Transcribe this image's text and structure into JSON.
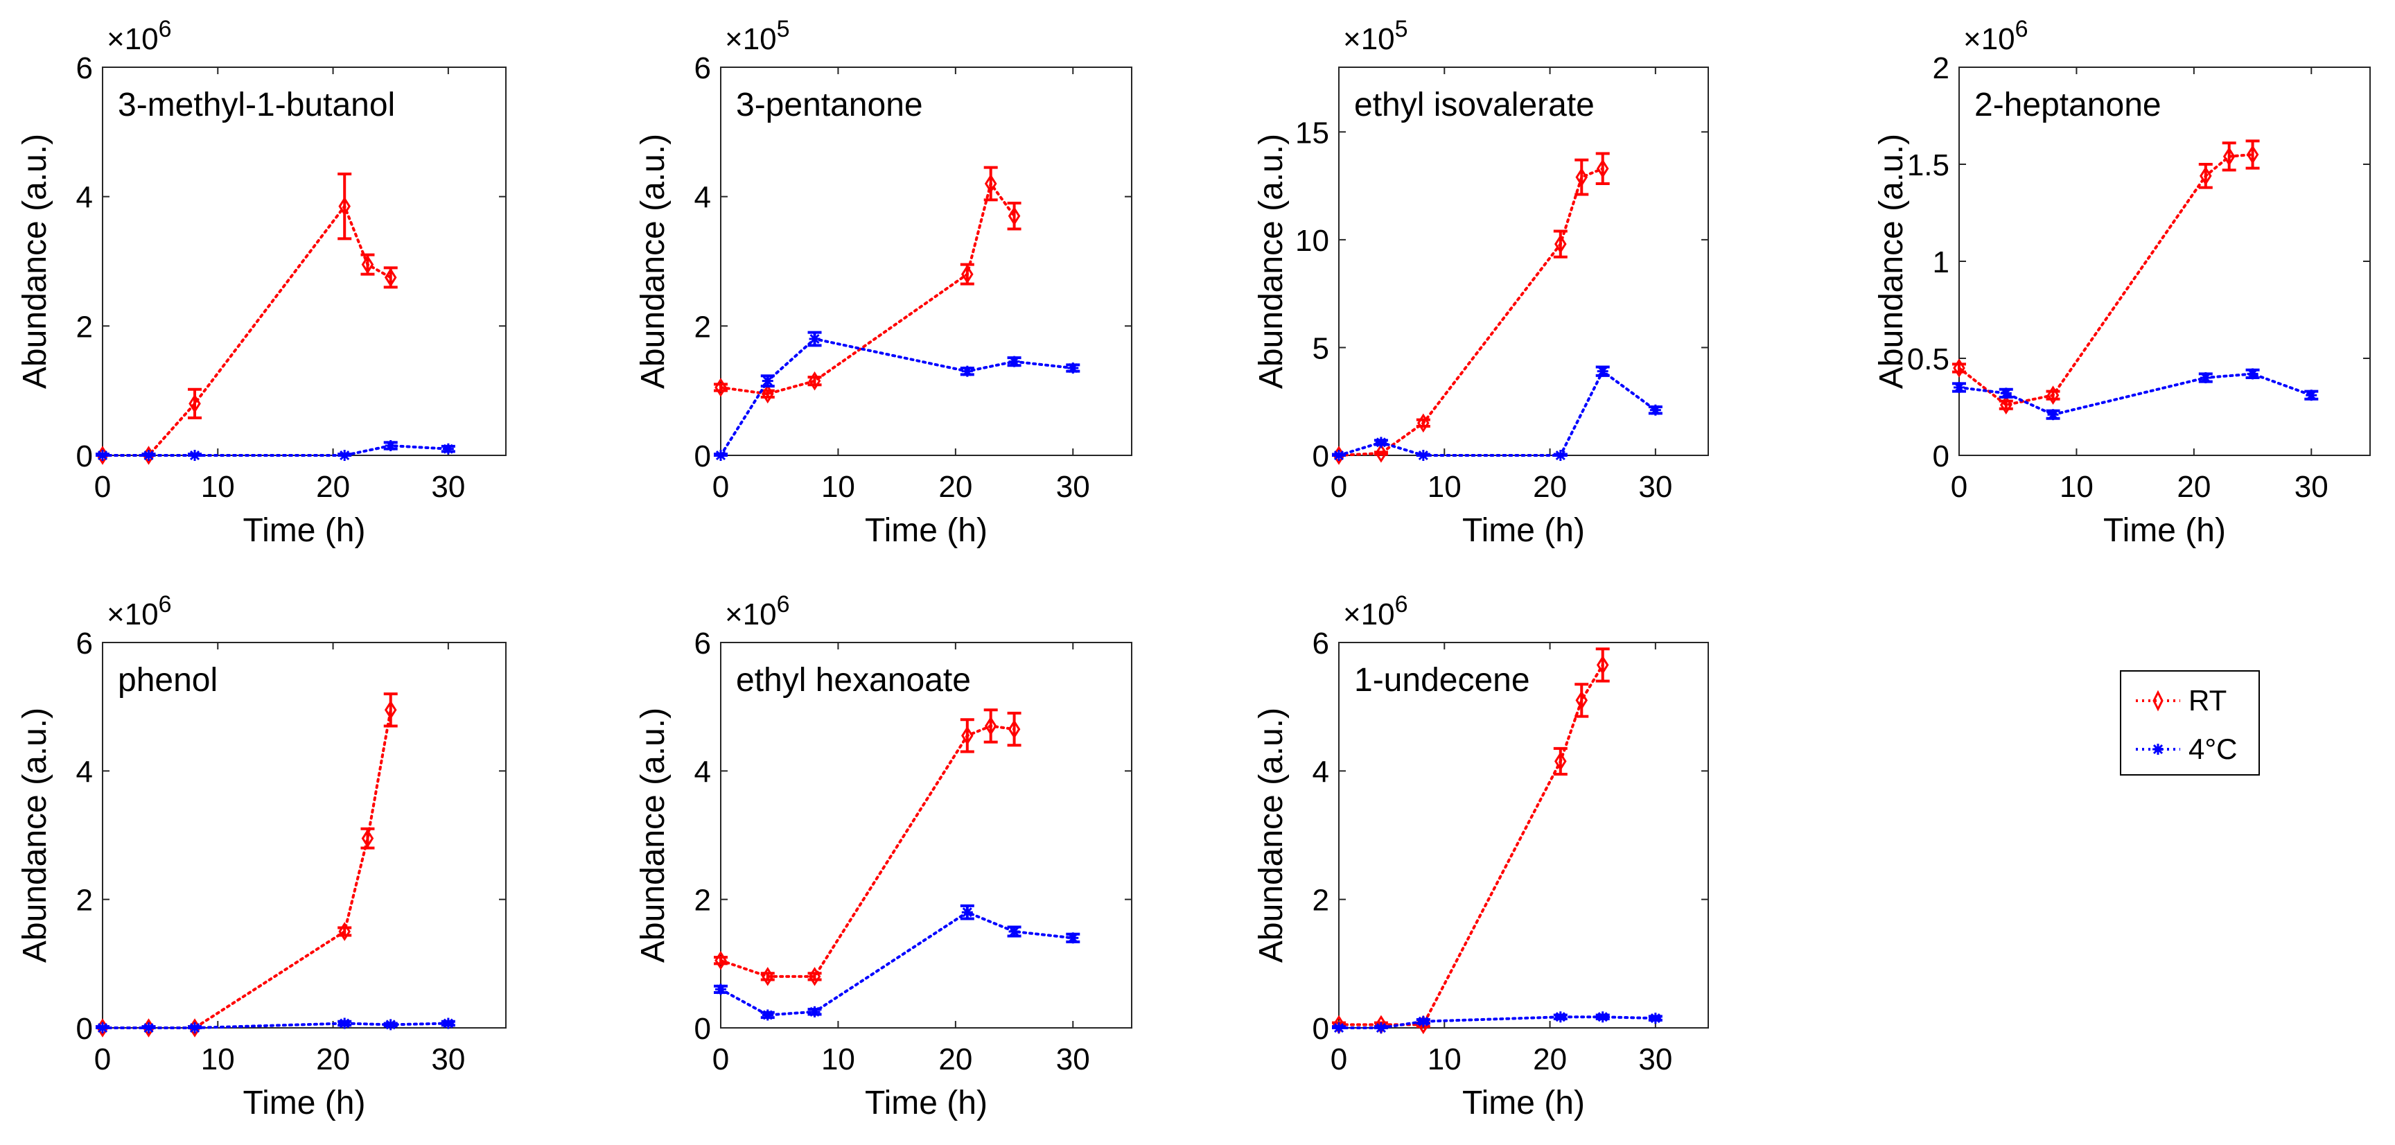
{
  "figure": {
    "xlabel": "Time (h)",
    "ylabel": "Abundance (a.u.)",
    "legend": {
      "entries": [
        {
          "name": "RT",
          "color": "#ff0000",
          "marker": "diamond"
        },
        {
          "name": "4°C",
          "color": "#0000ff",
          "marker": "asterisk"
        }
      ]
    }
  },
  "chart_data": [
    {
      "type": "line",
      "title": "3-methyl-1-butanol",
      "xlabel": "Time (h)",
      "ylabel": "Abundance (a.u.)",
      "xlim": [
        0,
        35
      ],
      "ylim": [
        0,
        6
      ],
      "xticks": [
        0,
        10,
        20,
        30
      ],
      "yticks": [
        0,
        2,
        4,
        6
      ],
      "multiplier_base": "×10",
      "multiplier_exp": "6",
      "series": [
        {
          "name": "RT",
          "x": [
            0,
            4,
            8,
            21,
            23,
            25
          ],
          "y": [
            0,
            0,
            0.8,
            3.85,
            2.95,
            2.75
          ],
          "err": [
            0.02,
            0.02,
            0.22,
            0.5,
            0.15,
            0.15
          ]
        },
        {
          "name": "4°C",
          "x": [
            0,
            4,
            8,
            21,
            25,
            30
          ],
          "y": [
            0,
            0,
            0,
            0,
            0.15,
            0.1
          ],
          "err": [
            0.02,
            0.02,
            0.02,
            0.02,
            0.05,
            0.04
          ]
        }
      ]
    },
    {
      "type": "line",
      "title": "3-pentanone",
      "xlabel": "Time (h)",
      "ylabel": "Abundance (a.u.)",
      "xlim": [
        0,
        35
      ],
      "ylim": [
        0,
        6
      ],
      "xticks": [
        0,
        10,
        20,
        30
      ],
      "yticks": [
        0,
        2,
        4,
        6
      ],
      "multiplier_base": "×10",
      "multiplier_exp": "5",
      "series": [
        {
          "name": "RT",
          "x": [
            0,
            4,
            8,
            21,
            23,
            25
          ],
          "y": [
            1.05,
            0.95,
            1.15,
            2.8,
            4.2,
            3.7
          ],
          "err": [
            0.05,
            0.05,
            0.06,
            0.15,
            0.25,
            0.2
          ]
        },
        {
          "name": "4°C",
          "x": [
            0,
            4,
            8,
            21,
            25,
            30
          ],
          "y": [
            0,
            1.15,
            1.8,
            1.3,
            1.45,
            1.35
          ],
          "err": [
            0.02,
            0.08,
            0.1,
            0.05,
            0.06,
            0.05
          ]
        }
      ]
    },
    {
      "type": "line",
      "title": "ethyl isovalerate",
      "xlabel": "Time (h)",
      "ylabel": "Abundance (a.u.)",
      "xlim": [
        0,
        35
      ],
      "ylim": [
        0,
        18
      ],
      "xticks": [
        0,
        10,
        20,
        30
      ],
      "yticks": [
        0,
        5,
        10,
        15
      ],
      "multiplier_base": "×10",
      "multiplier_exp": "5",
      "series": [
        {
          "name": "RT",
          "x": [
            0,
            4,
            8,
            21,
            23,
            25
          ],
          "y": [
            0,
            0.1,
            1.5,
            9.8,
            12.9,
            13.3
          ],
          "err": [
            0.05,
            0.05,
            0.15,
            0.6,
            0.8,
            0.7
          ]
        },
        {
          "name": "4°C",
          "x": [
            0,
            4,
            8,
            21,
            25,
            30
          ],
          "y": [
            0,
            0.6,
            0,
            0,
            3.9,
            2.1
          ],
          "err": [
            0.05,
            0.1,
            0.05,
            0.05,
            0.2,
            0.15
          ]
        }
      ]
    },
    {
      "type": "line",
      "title": "2-heptanone",
      "xlabel": "Time (h)",
      "ylabel": "Abundance (a.u.)",
      "xlim": [
        0,
        35
      ],
      "ylim": [
        0,
        2
      ],
      "xticks": [
        0,
        10,
        20,
        30
      ],
      "yticks": [
        0,
        0.5,
        1,
        1.5,
        2
      ],
      "multiplier_base": "×10",
      "multiplier_exp": "6",
      "series": [
        {
          "name": "RT",
          "x": [
            0,
            4,
            8,
            21,
            23,
            25
          ],
          "y": [
            0.45,
            0.26,
            0.31,
            1.44,
            1.54,
            1.55
          ],
          "err": [
            0.02,
            0.02,
            0.02,
            0.06,
            0.07,
            0.07
          ]
        },
        {
          "name": "4°C",
          "x": [
            0,
            4,
            8,
            21,
            25,
            30
          ],
          "y": [
            0.35,
            0.32,
            0.21,
            0.4,
            0.42,
            0.31
          ],
          "err": [
            0.02,
            0.02,
            0.02,
            0.02,
            0.02,
            0.02
          ]
        }
      ]
    },
    {
      "type": "line",
      "title": "phenol",
      "xlabel": "Time (h)",
      "ylabel": "Abundance (a.u.)",
      "xlim": [
        0,
        35
      ],
      "ylim": [
        0,
        6
      ],
      "xticks": [
        0,
        10,
        20,
        30
      ],
      "yticks": [
        0,
        2,
        4,
        6
      ],
      "multiplier_base": "×10",
      "multiplier_exp": "6",
      "series": [
        {
          "name": "RT",
          "x": [
            0,
            4,
            8,
            21,
            23,
            25
          ],
          "y": [
            0,
            0,
            0,
            1.5,
            2.95,
            4.95
          ],
          "err": [
            0.02,
            0.02,
            0.02,
            0.06,
            0.15,
            0.25
          ]
        },
        {
          "name": "4°C",
          "x": [
            0,
            4,
            8,
            21,
            25,
            30
          ],
          "y": [
            0,
            0,
            0,
            0.07,
            0.05,
            0.07
          ],
          "err": [
            0.02,
            0.02,
            0.02,
            0.03,
            0.02,
            0.03
          ]
        }
      ]
    },
    {
      "type": "line",
      "title": "ethyl hexanoate",
      "xlabel": "Time (h)",
      "ylabel": "Abundance (a.u.)",
      "xlim": [
        0,
        35
      ],
      "ylim": [
        0,
        6
      ],
      "xticks": [
        0,
        10,
        20,
        30
      ],
      "yticks": [
        0,
        2,
        4,
        6
      ],
      "multiplier_base": "×10",
      "multiplier_exp": "6",
      "series": [
        {
          "name": "RT",
          "x": [
            0,
            4,
            8,
            21,
            23,
            25
          ],
          "y": [
            1.05,
            0.8,
            0.8,
            4.55,
            4.7,
            4.65
          ],
          "err": [
            0.05,
            0.05,
            0.05,
            0.25,
            0.25,
            0.25
          ]
        },
        {
          "name": "4°C",
          "x": [
            0,
            4,
            8,
            21,
            25,
            30
          ],
          "y": [
            0.6,
            0.2,
            0.25,
            1.8,
            1.5,
            1.4
          ],
          "err": [
            0.05,
            0.04,
            0.04,
            0.1,
            0.07,
            0.06
          ]
        }
      ]
    },
    {
      "type": "line",
      "title": "1-undecene",
      "xlabel": "Time (h)",
      "ylabel": "Abundance (a.u.)",
      "xlim": [
        0,
        35
      ],
      "ylim": [
        0,
        6
      ],
      "xticks": [
        0,
        10,
        20,
        30
      ],
      "yticks": [
        0,
        2,
        4,
        6
      ],
      "multiplier_base": "×10",
      "multiplier_exp": "6",
      "series": [
        {
          "name": "RT",
          "x": [
            0,
            4,
            8,
            21,
            23,
            25
          ],
          "y": [
            0.05,
            0.05,
            0.05,
            4.15,
            5.1,
            5.65
          ],
          "err": [
            0.03,
            0.03,
            0.03,
            0.2,
            0.25,
            0.25
          ]
        },
        {
          "name": "4°C",
          "x": [
            0,
            4,
            8,
            21,
            25,
            30
          ],
          "y": [
            0,
            0,
            0.1,
            0.17,
            0.17,
            0.15
          ],
          "err": [
            0.02,
            0.02,
            0.03,
            0.03,
            0.03,
            0.03
          ]
        }
      ]
    }
  ]
}
